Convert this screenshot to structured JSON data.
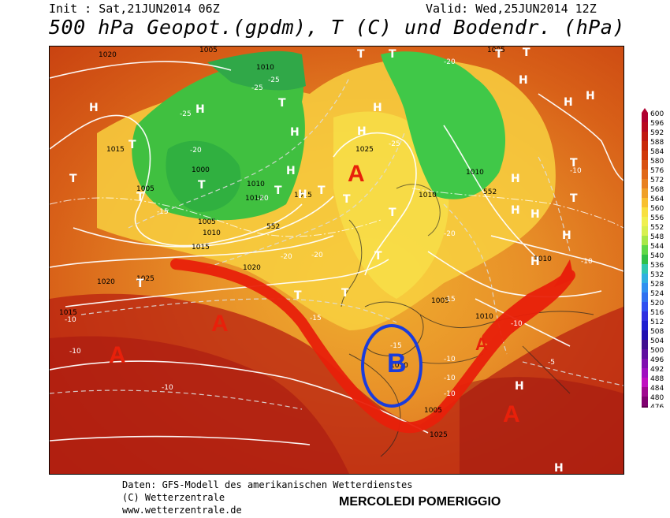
{
  "header": {
    "init": "Init : Sat,21JUN2014 06Z",
    "valid": "Valid: Wed,25JUN2014 12Z",
    "title": "500 hPa Geopot.(gpdm), T (C) und Bodendr. (hPa)"
  },
  "footer": {
    "line1": "Daten: GFS-Modell des amerikanischen Wetterdienstes",
    "line2": "(C) Wetterzentrale",
    "line3": "www.wetterzentrale.de",
    "caption": "MERCOLEDI POMERIGGIO"
  },
  "colors": {
    "jet_stream": "#e8200a",
    "low_marker": "#1a3cdc",
    "high_symbol": "#e8200a"
  },
  "annotations": {
    "highs": [
      "A",
      "A",
      "A",
      "A",
      "A"
    ],
    "low": "B"
  },
  "map_labels": {
    "pressure": [
      "1020",
      "1005",
      "1010",
      "1005",
      "1015",
      "1000",
      "1010",
      "1005",
      "1005",
      "1010",
      "1015",
      "1020",
      "1025",
      "1020",
      "1015",
      "1025",
      "1010",
      "1015",
      "1010",
      "1010",
      "1010",
      "1005",
      "1010",
      "1025",
      "1010",
      "1005"
    ],
    "temperature": [
      "-25",
      "-20",
      "-25",
      "-20",
      "-25",
      "-20",
      "-15",
      "-20",
      "-25",
      "-20",
      "-10",
      "-20",
      "-10",
      "-15",
      "-15",
      "-10",
      "-10",
      "-10",
      "-15",
      "-10",
      "-5",
      "-10",
      "-10",
      "-10"
    ],
    "geopotential": [
      "552",
      "552"
    ],
    "highs_small": [
      "H",
      "H",
      "H",
      "H",
      "H",
      "H",
      "H",
      "H",
      "H",
      "H",
      "H",
      "H",
      "H",
      "H",
      "H",
      "H",
      "H"
    ],
    "lows_small": [
      "T",
      "T",
      "T",
      "T",
      "T",
      "T",
      "T",
      "T",
      "T",
      "T",
      "T",
      "T",
      "T",
      "T",
      "T",
      "T",
      "T",
      "T",
      "T",
      "T"
    ]
  },
  "legend": {
    "values": [
      "600",
      "596",
      "592",
      "588",
      "584",
      "580",
      "576",
      "572",
      "568",
      "564",
      "560",
      "556",
      "552",
      "548",
      "544",
      "540",
      "536",
      "532",
      "528",
      "524",
      "520",
      "516",
      "512",
      "508",
      "504",
      "500",
      "496",
      "492",
      "488",
      "484",
      "480",
      "476"
    ],
    "colors": [
      "#b00030",
      "#b80820",
      "#c01810",
      "#c82808",
      "#d03808",
      "#d85010",
      "#e06818",
      "#e88020",
      "#f0a028",
      "#f8c030",
      "#f8e040",
      "#f0f050",
      "#d8f050",
      "#a8e848",
      "#60d848",
      "#30c048",
      "#30c8b0",
      "#30b0e0",
      "#3090f0",
      "#3070f0",
      "#3050f0",
      "#3030e0",
      "#2020d0",
      "#2010b0",
      "#401090",
      "#6010a0",
      "#8010b0",
      "#a010c0",
      "#c010c0",
      "#a00890",
      "#800070",
      "#600050"
    ]
  }
}
